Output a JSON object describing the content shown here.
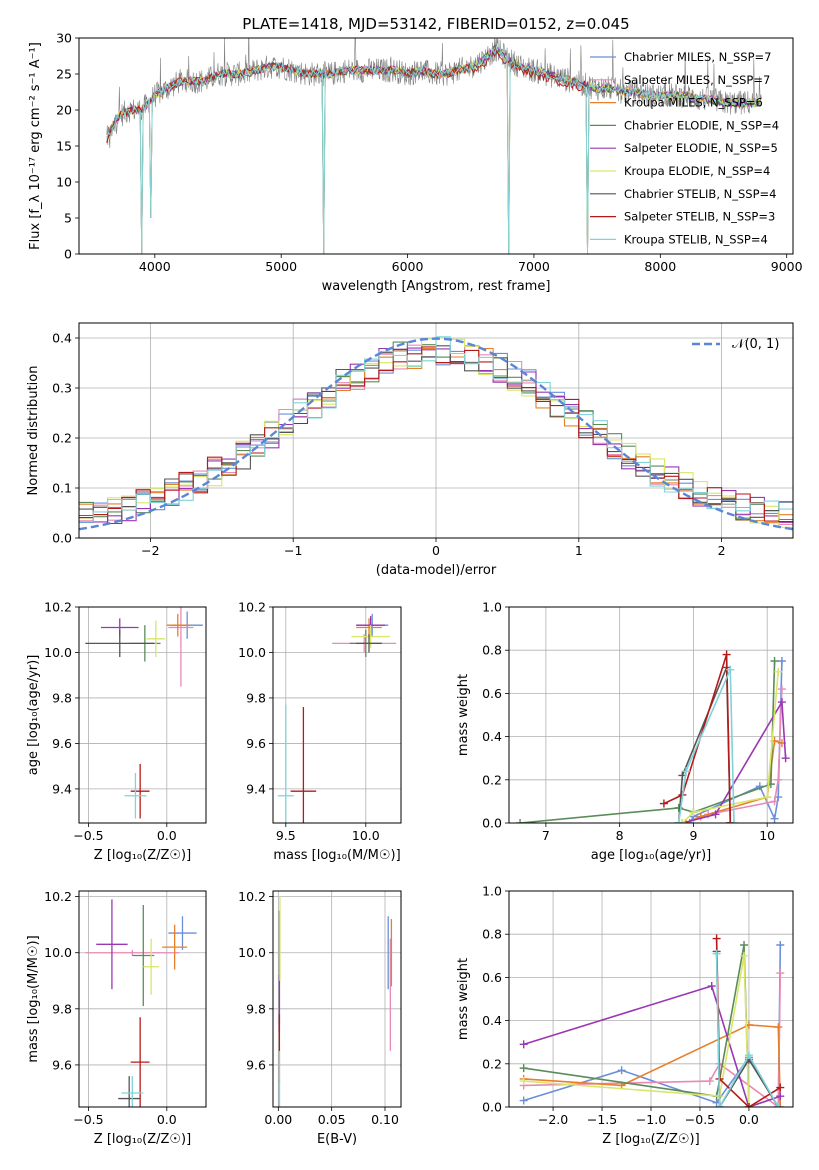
{
  "figure_title": "PLATE=1418, MJD=53142, FIBERID=0152, z=0.045",
  "model_colors": [
    "#6a8fd8",
    "#e88ab6",
    "#e77f2b",
    "#5a8c5a",
    "#9b36b3",
    "#d9e66a",
    "#555555",
    "#b51a1a",
    "#7fd3d9"
  ],
  "chart_data": [
    {
      "id": "spectrum",
      "type": "line",
      "title": "PLATE=1418, MJD=53142, FIBERID=0152, z=0.045",
      "xlabel": "wavelength [Angstrom, rest frame]",
      "ylabel": "Flux [f_λ 10⁻¹⁷ erg cm⁻² s⁻¹ A⁻¹]",
      "xlim": [
        3400,
        9050
      ],
      "ylim": [
        0,
        30
      ],
      "xticks": [
        "4000",
        "5000",
        "6000",
        "7000",
        "8000",
        "9000"
      ],
      "yticks": [
        "0",
        "5",
        "10",
        "15",
        "20",
        "25",
        "30"
      ],
      "grid": false,
      "legend": "right",
      "series": [
        {
          "name": "Chabrier MILES, N_SSP=7",
          "color": "#6a8fd8"
        },
        {
          "name": "Salpeter MILES, N_SSP=7",
          "color": "#e88ab6"
        },
        {
          "name": "Kroupa MILES, N_SSP=6",
          "color": "#e77f2b"
        },
        {
          "name": "Chabrier ELODIE, N_SSP=4",
          "color": "#5a8c5a"
        },
        {
          "name": "Salpeter ELODIE, N_SSP=5",
          "color": "#9b36b3"
        },
        {
          "name": "Kroupa ELODIE, N_SSP=4",
          "color": "#d9e66a"
        },
        {
          "name": "Chabrier STELIB, N_SSP=4",
          "color": "#555555"
        },
        {
          "name": "Salpeter STELIB, N_SSP=3",
          "color": "#b51a1a"
        },
        {
          "name": "Kroupa STELIB, N_SSP=4",
          "color": "#7fd3d9"
        }
      ],
      "continuum": {
        "x": [
          3620,
          3700,
          3800,
          3900,
          4000,
          4100,
          4200,
          4300,
          4400,
          4500,
          4600,
          4700,
          4800,
          4900,
          5000,
          5100,
          5200,
          5300,
          5400,
          5500,
          5600,
          5700,
          5800,
          5900,
          6000,
          6100,
          6200,
          6300,
          6400,
          6500,
          6600,
          6700,
          6800,
          6900,
          7000,
          7100,
          7200,
          7300,
          7400,
          7500,
          7600,
          7700,
          7800,
          7900,
          8000,
          8100,
          8200,
          8300,
          8400,
          8500,
          8600,
          8700,
          8800
        ],
        "y": [
          16,
          19,
          20,
          20,
          22,
          23,
          24,
          24,
          24,
          25,
          25,
          25,
          25.5,
          26,
          26,
          25.5,
          25,
          25,
          25,
          25.5,
          25.5,
          25.5,
          25.5,
          25.5,
          25,
          25.5,
          25,
          25,
          25.5,
          26,
          27,
          28.5,
          27,
          26,
          25.5,
          25,
          24.5,
          24,
          23.5,
          23,
          23,
          22.5,
          22.5,
          22,
          22,
          22,
          22,
          21.5,
          21.5,
          21,
          21,
          21,
          21
        ]
      },
      "dips": [
        {
          "x": 3900,
          "y": 0
        },
        {
          "x": 3965,
          "y": 5
        },
        {
          "x": 5340,
          "y": 0
        },
        {
          "x": 6800,
          "y": 0
        },
        {
          "x": 7420,
          "y": 0
        }
      ]
    },
    {
      "id": "residuals",
      "type": "histogram",
      "xlabel": "(data-model)/error",
      "ylabel": "Normed distribution",
      "xlim": [
        -2.5,
        2.5
      ],
      "ylim": [
        0,
        0.43
      ],
      "xticks": [
        "−2",
        "−1",
        "0",
        "1",
        "2"
      ],
      "yticks": [
        "0.0",
        "0.1",
        "0.2",
        "0.3",
        "0.4"
      ],
      "grid": true,
      "legend": "top-right",
      "reference_label": "𝒩(0, 1)",
      "reference_color": "#5b86d6",
      "bin_width": 0.1
    },
    {
      "id": "age-vs-Z",
      "type": "errorbar",
      "xlabel": "Z [log₁₀(Z/Z☉)]",
      "ylabel": "age  [log₁₀(age/yr)]",
      "xlim": [
        -0.56,
        0.25
      ],
      "ylim": [
        9.25,
        10.2
      ],
      "xticks": [
        "−0.5",
        "0.0"
      ],
      "yticks": [
        "9.4",
        "9.6",
        "9.8",
        "10.0",
        "10.2"
      ],
      "grid": true,
      "points": [
        {
          "x": 0.13,
          "y": 10.12,
          "xerr": 0.1,
          "yerr": 0.06,
          "color": "#6a8fd8"
        },
        {
          "x": 0.09,
          "y": 10.11,
          "xerr": 0.08,
          "yerr": 0.26,
          "color": "#e88ab6"
        },
        {
          "x": 0.07,
          "y": 10.12,
          "xerr": 0.07,
          "yerr": 0.05,
          "color": "#e77f2b"
        },
        {
          "x": -0.14,
          "y": 10.04,
          "xerr": 0.1,
          "yerr": 0.08,
          "color": "#5a8c5a"
        },
        {
          "x": -0.3,
          "y": 10.11,
          "xerr": 0.12,
          "yerr": 0.04,
          "color": "#9b36b3"
        },
        {
          "x": -0.07,
          "y": 10.06,
          "xerr": 0.06,
          "yerr": 0.08,
          "color": "#d9e66a"
        },
        {
          "x": -0.3,
          "y": 10.04,
          "xerr": 0.22,
          "yerr": 0.06,
          "color": "#555555"
        },
        {
          "x": -0.17,
          "y": 9.39,
          "xerr": 0.06,
          "yerr": 0.12,
          "color": "#b51a1a"
        },
        {
          "x": -0.2,
          "y": 9.37,
          "xerr": 0.07,
          "yerr": 0.1,
          "color": "#7fd3d9"
        }
      ]
    },
    {
      "id": "age-vs-mass",
      "type": "errorbar",
      "xlabel": "mass [log₁₀(M/M☉)]",
      "ylabel": "",
      "xlim": [
        9.42,
        10.22
      ],
      "ylim": [
        9.25,
        10.2
      ],
      "xticks": [
        "9.5",
        "10.0"
      ],
      "yticks": [
        "9.4",
        "9.6",
        "9.8",
        "10.0",
        "10.2"
      ],
      "grid": true,
      "points": [
        {
          "x": 10.04,
          "y": 10.12,
          "xerr": 0.1,
          "yerr": 0.05,
          "color": "#6a8fd8"
        },
        {
          "x": 9.99,
          "y": 10.04,
          "xerr": 0.2,
          "yerr": 0.04,
          "color": "#e88ab6"
        },
        {
          "x": 10.02,
          "y": 10.11,
          "xerr": 0.08,
          "yerr": 0.04,
          "color": "#e77f2b"
        },
        {
          "x": 10.0,
          "y": 10.04,
          "xerr": 0.1,
          "yerr": 0.06,
          "color": "#5a8c5a"
        },
        {
          "x": 10.03,
          "y": 10.12,
          "xerr": 0.09,
          "yerr": 0.04,
          "color": "#9b36b3"
        },
        {
          "x": 10.03,
          "y": 10.07,
          "xerr": 0.12,
          "yerr": 0.05,
          "color": "#d9e66a"
        },
        {
          "x": 10.02,
          "y": 10.04,
          "xerr": 0.08,
          "yerr": 0.04,
          "color": "#555555"
        },
        {
          "x": 9.61,
          "y": 9.39,
          "xerr": 0.08,
          "yerr": 0.37,
          "color": "#b51a1a"
        },
        {
          "x": 9.5,
          "y": 9.37,
          "xerr": 0.05,
          "yerr": 0.4,
          "color": "#7fd3d9"
        }
      ]
    },
    {
      "id": "weight-vs-age",
      "type": "line",
      "xlabel": "age  [log₁₀(age/yr)]",
      "ylabel": "mass weight",
      "xlim": [
        6.5,
        10.35
      ],
      "ylim": [
        0,
        1.0
      ],
      "xticks": [
        "7",
        "8",
        "9",
        "10"
      ],
      "yticks": [
        "0.0",
        "0.2",
        "0.4",
        "0.6",
        "0.8",
        "1.0"
      ],
      "grid": true,
      "series": [
        {
          "color": "#6a8fd8",
          "x": [
            8.95,
            9.0,
            9.9,
            10.1,
            10.15,
            10.2
          ],
          "y": [
            0.0,
            0.03,
            0.17,
            0.02,
            0.12,
            0.75
          ]
        },
        {
          "color": "#e88ab6",
          "x": [
            8.9,
            9.2,
            10.1,
            10.15,
            10.2
          ],
          "y": [
            0.0,
            0.04,
            0.1,
            0.2,
            0.62
          ]
        },
        {
          "color": "#e77f2b",
          "x": [
            8.9,
            9.1,
            10.0,
            10.1,
            10.2
          ],
          "y": [
            0.0,
            0.03,
            0.12,
            0.38,
            0.37
          ]
        },
        {
          "color": "#5a8c5a",
          "x": [
            6.65,
            8.8,
            9.0,
            10.05,
            10.1
          ],
          "y": [
            0.0,
            0.07,
            0.05,
            0.18,
            0.75
          ]
        },
        {
          "color": "#9b36b3",
          "x": [
            8.85,
            9.3,
            10.2,
            10.25
          ],
          "y": [
            0.0,
            0.04,
            0.56,
            0.3
          ]
        },
        {
          "color": "#d9e66a",
          "x": [
            8.85,
            9.0,
            10.0,
            10.15
          ],
          "y": [
            0.0,
            0.05,
            0.12,
            0.7
          ]
        },
        {
          "color": "#555555",
          "x": [
            8.8,
            8.85,
            9.45,
            9.5
          ],
          "y": [
            0.0,
            0.22,
            0.72,
            0.0
          ]
        },
        {
          "color": "#b51a1a",
          "x": [
            8.6,
            8.85,
            9.45,
            9.5
          ],
          "y": [
            0.09,
            0.13,
            0.78,
            0.0
          ]
        },
        {
          "color": "#7fd3d9",
          "x": [
            8.8,
            8.9,
            9.5,
            9.55
          ],
          "y": [
            0.0,
            0.24,
            0.71,
            0.0
          ]
        }
      ]
    },
    {
      "id": "mass-vs-Z",
      "type": "errorbar",
      "xlabel": "Z [log₁₀(Z/Z☉)]",
      "ylabel": "mass [log₁₀(M/M☉)]",
      "xlim": [
        -0.56,
        0.25
      ],
      "ylim": [
        9.45,
        10.22
      ],
      "xticks": [
        "−0.5",
        "0.0"
      ],
      "yticks": [
        "9.6",
        "9.8",
        "10.0",
        "10.2"
      ],
      "grid": true,
      "points": [
        {
          "x": 0.1,
          "y": 10.07,
          "xerr": 0.09,
          "yerr": 0.06,
          "color": "#6a8fd8"
        },
        {
          "x": -0.22,
          "y": 10.0,
          "xerr": 0.3,
          "yerr": 0.01,
          "color": "#e88ab6"
        },
        {
          "x": 0.05,
          "y": 10.02,
          "xerr": 0.08,
          "yerr": 0.08,
          "color": "#e77f2b"
        },
        {
          "x": -0.15,
          "y": 9.99,
          "xerr": 0.07,
          "yerr": 0.18,
          "color": "#5a8c5a"
        },
        {
          "x": -0.35,
          "y": 10.03,
          "xerr": 0.1,
          "yerr": 0.16,
          "color": "#9b36b3"
        },
        {
          "x": -0.1,
          "y": 9.95,
          "xerr": 0.05,
          "yerr": 0.1,
          "color": "#d9e66a"
        },
        {
          "x": -0.24,
          "y": 9.48,
          "xerr": 0.07,
          "yerr": 0.08,
          "color": "#555555"
        },
        {
          "x": -0.17,
          "y": 9.61,
          "xerr": 0.06,
          "yerr": 0.16,
          "color": "#b51a1a"
        },
        {
          "x": -0.22,
          "y": 9.5,
          "xerr": 0.07,
          "yerr": 0.06,
          "color": "#7fd3d9"
        }
      ]
    },
    {
      "id": "mass-vs-EBV",
      "type": "errorbar",
      "xlabel": "E(B-V)",
      "ylabel": "",
      "xlim": [
        -0.005,
        0.115
      ],
      "ylim": [
        9.45,
        10.22
      ],
      "xticks": [
        "0.00",
        "0.05",
        "0.10"
      ],
      "yticks": [
        "9.6",
        "9.8",
        "10.0",
        "10.2"
      ],
      "grid": true,
      "points": [
        {
          "x": 0.103,
          "y": 10.0,
          "xerr": 0,
          "yerr": 0.13,
          "color": "#6a8fd8"
        },
        {
          "x": 0.105,
          "y": 9.85,
          "xerr": 0,
          "yerr": 0.2,
          "color": "#e88ab6"
        },
        {
          "x": 0.106,
          "y": 10.0,
          "xerr": 0,
          "yerr": 0.12,
          "color": "#e77f2b"
        },
        {
          "x": 0.001,
          "y": 9.95,
          "xerr": 0,
          "yerr": 0.2,
          "color": "#5a8c5a"
        },
        {
          "x": 0.001,
          "y": 9.82,
          "xerr": 0,
          "yerr": 0.1,
          "color": "#9b36b3"
        },
        {
          "x": 0.0015,
          "y": 10.05,
          "xerr": 0,
          "yerr": 0.15,
          "color": "#d9e66a"
        },
        {
          "x": 0.001,
          "y": 9.5,
          "xerr": 0,
          "yerr": 0.05,
          "color": "#555555"
        },
        {
          "x": 0.001,
          "y": 9.66,
          "xerr": 0,
          "yerr": 0.12,
          "color": "#b51a1a"
        },
        {
          "x": 0.001,
          "y": 9.55,
          "xerr": 0,
          "yerr": 0.1,
          "color": "#7fd3d9"
        }
      ]
    },
    {
      "id": "weight-vs-Z",
      "type": "line",
      "xlabel": "Z [log₁₀(Z/Z☉)]",
      "ylabel": "mass weight",
      "xlim": [
        -2.45,
        0.45
      ],
      "ylim": [
        0,
        1.0
      ],
      "xticks": [
        "−2.0",
        "−1.5",
        "−1.0",
        "−0.5",
        "0.0"
      ],
      "yticks": [
        "0.0",
        "0.2",
        "0.4",
        "0.6",
        "0.8",
        "1.0"
      ],
      "grid": true,
      "series": [
        {
          "color": "#6a8fd8",
          "x": [
            -2.3,
            -1.3,
            -0.33,
            0.0,
            0.3,
            0.32
          ],
          "y": [
            0.03,
            0.17,
            0.02,
            0.23,
            0.0,
            0.75
          ]
        },
        {
          "color": "#e88ab6",
          "x": [
            -2.3,
            -0.4,
            -0.3,
            0.3,
            0.32
          ],
          "y": [
            0.1,
            0.12,
            0.2,
            0.0,
            0.62
          ]
        },
        {
          "color": "#e77f2b",
          "x": [
            -2.3,
            -1.3,
            0.0,
            0.3,
            0.32
          ],
          "y": [
            0.13,
            0.1,
            0.38,
            0.37,
            0.0
          ]
        },
        {
          "color": "#5a8c5a",
          "x": [
            -2.3,
            -0.33,
            -0.05,
            0.0
          ],
          "y": [
            0.18,
            0.05,
            0.75,
            0.0
          ]
        },
        {
          "color": "#9b36b3",
          "x": [
            -2.3,
            -0.38,
            0.0,
            0.32
          ],
          "y": [
            0.29,
            0.56,
            0.0,
            0.05
          ]
        },
        {
          "color": "#d9e66a",
          "x": [
            -2.3,
            -0.3,
            -0.05,
            0.0
          ],
          "y": [
            0.12,
            0.05,
            0.7,
            0.0
          ]
        },
        {
          "color": "#555555",
          "x": [
            -0.33,
            -0.3,
            0.0,
            0.3
          ],
          "y": [
            0.72,
            0.0,
            0.22,
            0.0
          ]
        },
        {
          "color": "#b51a1a",
          "x": [
            -0.33,
            -0.3,
            0.0,
            0.32
          ],
          "y": [
            0.78,
            0.13,
            0.0,
            0.09
          ]
        },
        {
          "color": "#7fd3d9",
          "x": [
            -0.33,
            -0.3,
            0.0,
            0.3
          ],
          "y": [
            0.71,
            0.0,
            0.24,
            0.0
          ]
        }
      ]
    }
  ]
}
